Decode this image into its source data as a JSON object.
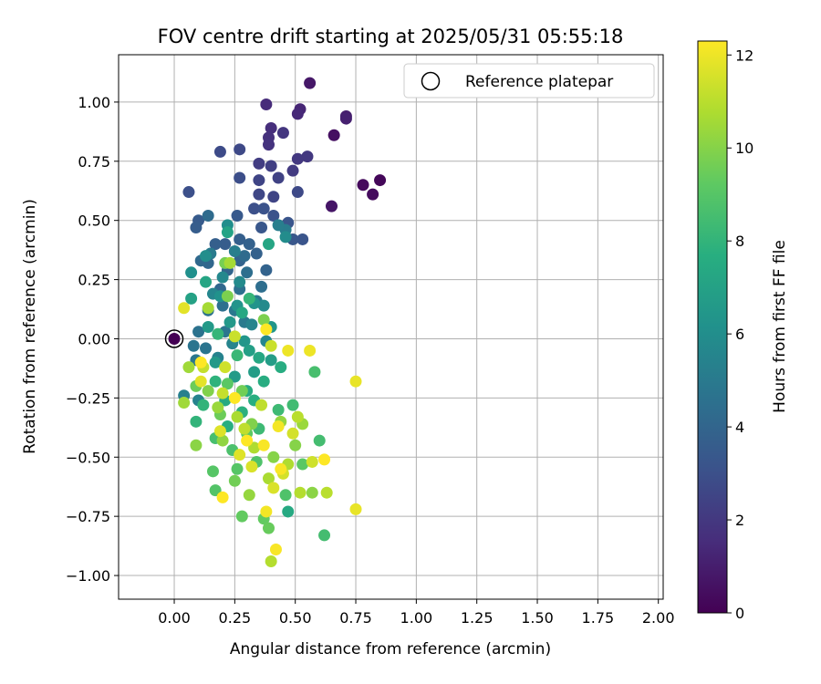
{
  "chart_data": {
    "type": "scatter",
    "title": "FOV centre drift starting at 2025/05/31 05:55:18",
    "xlabel": "Angular distance from reference (arcmin)",
    "ylabel": "Rotation from reference (arcmin)",
    "xlim": [
      -0.23,
      2.02
    ],
    "ylim": [
      -1.1,
      1.2
    ],
    "xticks": [
      "0.00",
      "0.25",
      "0.50",
      "0.75",
      "1.00",
      "1.25",
      "1.50",
      "1.75",
      "2.00"
    ],
    "xtick_values": [
      0,
      0.25,
      0.5,
      0.75,
      1.0,
      1.25,
      1.5,
      1.75,
      2.0
    ],
    "yticks": [
      "1.00",
      "0.75",
      "0.50",
      "0.25",
      "0.00",
      "−0.25",
      "−0.50",
      "−0.75",
      "−1.00"
    ],
    "ytick_values": [
      1.0,
      0.75,
      0.5,
      0.25,
      0,
      -0.25,
      -0.5,
      -0.75,
      -1.0
    ],
    "grid": true,
    "legend": {
      "position": "top-right",
      "label": "Reference platepar",
      "marker": "open-circle"
    },
    "reference_point": {
      "x": 0.0,
      "y": 0.0,
      "hours": 0
    },
    "colorbar": {
      "label": "Hours from first FF file",
      "min": 0,
      "max": 12.3,
      "ticks": [
        "0",
        "2",
        "4",
        "6",
        "8",
        "10",
        "12"
      ],
      "tick_values": [
        0,
        2,
        4,
        6,
        8,
        10,
        12
      ],
      "colormap": "viridis"
    },
    "series": [
      {
        "points": [
          [
            0.85,
            0.67,
            0.2
          ],
          [
            0.78,
            0.65,
            0.3
          ],
          [
            0.82,
            0.61,
            0.4
          ],
          [
            0.66,
            0.86,
            0.5
          ],
          [
            0.56,
            1.08,
            0.8
          ],
          [
            0.65,
            0.56,
            0.7
          ],
          [
            0.71,
            0.94,
            1.0
          ],
          [
            0.71,
            0.93,
            1.1
          ],
          [
            0.52,
            0.97,
            1.3
          ],
          [
            0.51,
            0.95,
            1.4
          ],
          [
            0.38,
            0.99,
            1.5
          ],
          [
            0.4,
            0.89,
            1.6
          ],
          [
            0.39,
            0.85,
            1.7
          ],
          [
            0.39,
            0.82,
            1.8
          ],
          [
            0.45,
            0.87,
            1.9
          ],
          [
            0.51,
            0.76,
            2.0
          ],
          [
            0.55,
            0.77,
            2.0
          ],
          [
            0.49,
            0.71,
            2.1
          ],
          [
            0.35,
            0.74,
            2.2
          ],
          [
            0.4,
            0.73,
            2.3
          ],
          [
            0.43,
            0.68,
            2.4
          ],
          [
            0.41,
            0.6,
            2.5
          ],
          [
            0.35,
            0.67,
            2.5
          ],
          [
            0.35,
            0.61,
            2.6
          ],
          [
            0.51,
            0.62,
            2.7
          ],
          [
            0.27,
            0.8,
            2.7
          ],
          [
            0.19,
            0.79,
            2.8
          ],
          [
            0.27,
            0.68,
            2.9
          ],
          [
            0.06,
            0.62,
            3.0
          ],
          [
            0.33,
            0.55,
            3.0
          ],
          [
            0.37,
            0.55,
            3.1
          ],
          [
            0.41,
            0.52,
            3.1
          ],
          [
            0.47,
            0.49,
            3.2
          ],
          [
            0.53,
            0.42,
            3.2
          ],
          [
            0.49,
            0.42,
            3.3
          ],
          [
            0.36,
            0.47,
            3.3
          ],
          [
            0.26,
            0.52,
            3.4
          ],
          [
            0.1,
            0.5,
            3.5
          ],
          [
            0.09,
            0.47,
            3.6
          ],
          [
            0.21,
            0.4,
            3.6
          ],
          [
            0.17,
            0.4,
            3.7
          ],
          [
            0.27,
            0.42,
            3.7
          ],
          [
            0.31,
            0.4,
            3.8
          ],
          [
            0.34,
            0.36,
            3.8
          ],
          [
            0.38,
            0.29,
            3.9
          ],
          [
            0.27,
            0.33,
            3.9
          ],
          [
            0.22,
            0.29,
            4.0
          ],
          [
            0.14,
            0.32,
            4.1
          ],
          [
            0.19,
            0.21,
            4.1
          ],
          [
            0.11,
            0.33,
            4.2
          ],
          [
            0.14,
            0.52,
            4.3
          ],
          [
            0.29,
            0.35,
            4.3
          ],
          [
            0.3,
            0.28,
            4.4
          ],
          [
            0.36,
            0.22,
            4.4
          ],
          [
            0.27,
            0.21,
            4.5
          ],
          [
            0.2,
            0.14,
            4.5
          ],
          [
            0.14,
            0.12,
            4.6
          ],
          [
            0.1,
            0.03,
            4.6
          ],
          [
            0.13,
            -0.04,
            4.7
          ],
          [
            0.08,
            -0.03,
            4.7
          ],
          [
            0.09,
            -0.09,
            4.8
          ],
          [
            0.21,
            0.03,
            4.8
          ],
          [
            0.25,
            0.12,
            4.9
          ],
          [
            0.34,
            0.16,
            4.9
          ],
          [
            0.29,
            0.07,
            5.0
          ],
          [
            0.15,
            0.36,
            5.0
          ],
          [
            0.46,
            0.46,
            5.1
          ],
          [
            0.43,
            0.48,
            5.2
          ],
          [
            0.25,
            0.37,
            5.2
          ],
          [
            0.04,
            -0.24,
            5.3
          ],
          [
            0.1,
            -0.26,
            5.4
          ],
          [
            0.18,
            -0.08,
            5.4
          ],
          [
            0.24,
            -0.02,
            5.5
          ],
          [
            0.32,
            0.06,
            5.5
          ],
          [
            0.38,
            -0.01,
            5.6
          ],
          [
            0.16,
            0.19,
            5.6
          ],
          [
            0.2,
            0.26,
            5.7
          ],
          [
            0.27,
            0.24,
            5.8
          ],
          [
            0.37,
            0.14,
            5.8
          ],
          [
            0.46,
            0.43,
            5.9
          ],
          [
            0.22,
            0.48,
            6.0
          ],
          [
            0.13,
            0.35,
            6.0
          ],
          [
            0.07,
            0.28,
            6.1
          ],
          [
            0.19,
            0.18,
            6.2
          ],
          [
            0.26,
            0.14,
            6.3
          ],
          [
            0.33,
            0.15,
            6.3
          ],
          [
            0.4,
            0.05,
            6.4
          ],
          [
            0.29,
            -0.01,
            6.4
          ],
          [
            0.23,
            0.07,
            6.5
          ],
          [
            0.14,
            0.05,
            6.6
          ],
          [
            0.17,
            -0.1,
            6.6
          ],
          [
            0.25,
            -0.16,
            6.7
          ],
          [
            0.33,
            -0.14,
            6.8
          ],
          [
            0.4,
            -0.09,
            6.8
          ],
          [
            0.31,
            -0.05,
            6.9
          ],
          [
            0.07,
            0.17,
            7.0
          ],
          [
            0.22,
            0.45,
            7.1
          ],
          [
            0.39,
            0.4,
            7.2
          ],
          [
            0.13,
            0.24,
            7.2
          ],
          [
            0.28,
            0.11,
            7.3
          ],
          [
            0.35,
            -0.08,
            7.3
          ],
          [
            0.47,
            -0.73,
            7.4
          ],
          [
            0.21,
            -0.26,
            7.5
          ],
          [
            0.3,
            -0.22,
            7.5
          ],
          [
            0.37,
            -0.18,
            7.6
          ],
          [
            0.44,
            -0.12,
            7.6
          ],
          [
            0.33,
            -0.26,
            7.7
          ],
          [
            0.22,
            -0.37,
            7.7
          ],
          [
            0.28,
            -0.31,
            7.8
          ],
          [
            0.17,
            -0.18,
            7.9
          ],
          [
            0.12,
            -0.28,
            8.0
          ],
          [
            0.09,
            -0.35,
            8.0
          ],
          [
            0.31,
            0.17,
            8.1
          ],
          [
            0.18,
            0.02,
            8.1
          ],
          [
            0.26,
            -0.07,
            8.2
          ],
          [
            0.35,
            -0.38,
            8.3
          ],
          [
            0.43,
            -0.3,
            8.3
          ],
          [
            0.49,
            -0.28,
            8.4
          ],
          [
            0.62,
            -0.83,
            8.5
          ],
          [
            0.6,
            -0.43,
            8.5
          ],
          [
            0.58,
            -0.14,
            8.6
          ],
          [
            0.17,
            -0.42,
            8.6
          ],
          [
            0.24,
            -0.47,
            8.7
          ],
          [
            0.34,
            -0.52,
            8.8
          ],
          [
            0.46,
            -0.66,
            8.8
          ],
          [
            0.17,
            -0.64,
            8.9
          ],
          [
            0.16,
            -0.56,
            9.0
          ],
          [
            0.26,
            -0.55,
            9.0
          ],
          [
            0.53,
            -0.53,
            9.1
          ],
          [
            0.22,
            -0.19,
            9.1
          ],
          [
            0.3,
            -0.4,
            9.2
          ],
          [
            0.37,
            -0.76,
            9.3
          ],
          [
            0.28,
            -0.75,
            9.3
          ],
          [
            0.39,
            -0.8,
            9.4
          ],
          [
            0.09,
            -0.2,
            9.5
          ],
          [
            0.19,
            -0.32,
            9.5
          ],
          [
            0.28,
            -0.22,
            9.6
          ],
          [
            0.25,
            -0.6,
            9.6
          ],
          [
            0.21,
            0.32,
            9.7
          ],
          [
            0.22,
            0.18,
            9.8
          ],
          [
            0.37,
            0.08,
            9.8
          ],
          [
            0.14,
            -0.22,
            9.9
          ],
          [
            0.32,
            -0.36,
            9.9
          ],
          [
            0.41,
            -0.5,
            10.0
          ],
          [
            0.5,
            -0.45,
            10.0
          ],
          [
            0.57,
            -0.65,
            10.1
          ],
          [
            0.09,
            -0.45,
            10.1
          ],
          [
            0.2,
            -0.43,
            10.2
          ],
          [
            0.31,
            -0.66,
            10.3
          ],
          [
            0.44,
            -0.35,
            10.3
          ],
          [
            0.53,
            -0.36,
            10.4
          ],
          [
            0.18,
            -0.29,
            10.4
          ],
          [
            0.04,
            -0.27,
            10.5
          ],
          [
            0.06,
            -0.12,
            10.5
          ],
          [
            0.14,
            0.13,
            10.6
          ],
          [
            0.23,
            0.32,
            10.6
          ],
          [
            0.26,
            -0.33,
            10.7
          ],
          [
            0.39,
            -0.59,
            10.7
          ],
          [
            0.33,
            -0.46,
            10.8
          ],
          [
            0.47,
            -0.53,
            10.8
          ],
          [
            0.4,
            -0.94,
            10.9
          ],
          [
            0.52,
            -0.65,
            10.9
          ],
          [
            0.63,
            -0.65,
            11.0
          ],
          [
            0.51,
            -0.33,
            11.0
          ],
          [
            0.36,
            -0.28,
            11.1
          ],
          [
            0.29,
            -0.38,
            11.1
          ],
          [
            0.2,
            -0.23,
            11.2
          ],
          [
            0.12,
            -0.12,
            11.2
          ],
          [
            0.25,
            0.01,
            11.3
          ],
          [
            0.4,
            -0.03,
            11.3
          ],
          [
            0.21,
            -0.12,
            11.4
          ],
          [
            0.57,
            -0.52,
            11.4
          ],
          [
            0.49,
            -0.4,
            11.5
          ],
          [
            0.45,
            -0.57,
            11.5
          ],
          [
            0.41,
            -0.63,
            11.6
          ],
          [
            0.32,
            -0.54,
            11.6
          ],
          [
            0.27,
            -0.49,
            11.7
          ],
          [
            0.19,
            -0.39,
            11.7
          ],
          [
            0.11,
            -0.18,
            11.8
          ],
          [
            0.04,
            0.13,
            11.8
          ],
          [
            0.75,
            -0.72,
            11.9
          ],
          [
            0.75,
            -0.18,
            11.9
          ],
          [
            0.56,
            -0.05,
            12.0
          ],
          [
            0.47,
            -0.05,
            12.0
          ],
          [
            0.43,
            -0.37,
            12.1
          ],
          [
            0.38,
            -0.73,
            12.1
          ],
          [
            0.42,
            -0.89,
            12.2
          ],
          [
            0.44,
            -0.55,
            12.2
          ],
          [
            0.37,
            -0.45,
            12.2
          ],
          [
            0.2,
            -0.67,
            12.3
          ],
          [
            0.11,
            -0.1,
            12.3
          ],
          [
            0.38,
            0.04,
            12.3
          ],
          [
            0.25,
            -0.25,
            12.3
          ],
          [
            0.62,
            -0.51,
            12.3
          ],
          [
            0.3,
            -0.43,
            12.3
          ]
        ]
      }
    ]
  }
}
